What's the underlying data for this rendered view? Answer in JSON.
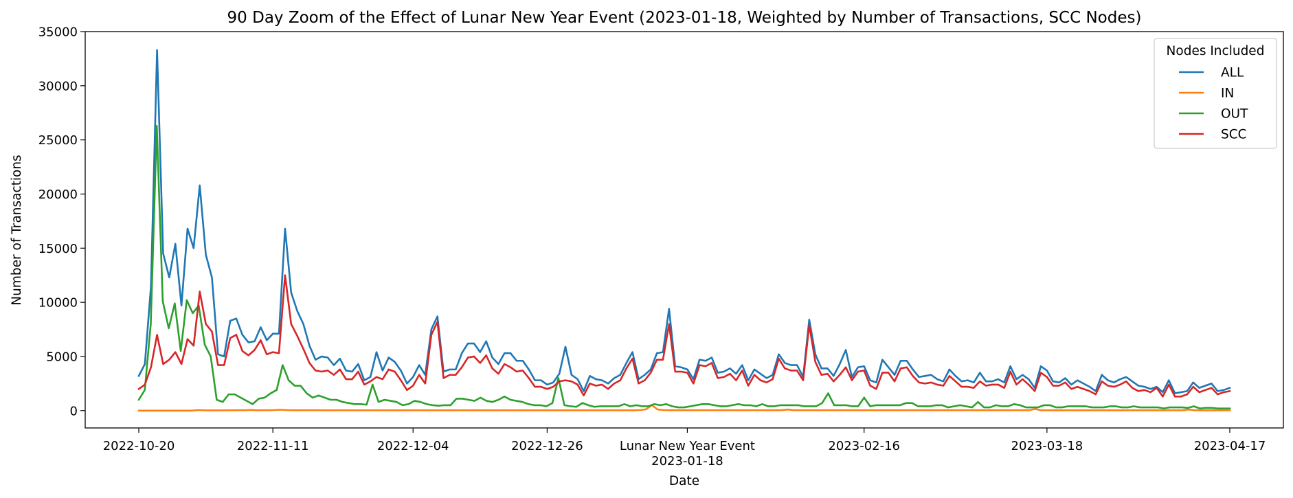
{
  "chart_data": {
    "type": "line",
    "title": "90 Day Zoom of the Effect of Lunar New Year Event (2023-01-18, Weighted by Number of Transactions, SCC Nodes)",
    "xlabel": "Date",
    "ylabel": "Number of Transactions",
    "x_start": "2022-10-20",
    "x_end": "2023-04-17",
    "ylim": [
      -1600,
      35000
    ],
    "yticks": [
      0,
      5000,
      10000,
      15000,
      20000,
      25000,
      30000,
      35000
    ],
    "xticks": [
      {
        "date": "2022-10-20",
        "label": "2022-10-20"
      },
      {
        "date": "2022-11-11",
        "label": "2022-11-11"
      },
      {
        "date": "2022-12-04",
        "label": "2022-12-04"
      },
      {
        "date": "2022-12-26",
        "label": "2022-12-26"
      },
      {
        "date": "2023-01-18",
        "label": "Lunar New Year Event",
        "label2": "2023-01-18"
      },
      {
        "date": "2023-02-16",
        "label": "2023-02-16"
      },
      {
        "date": "2023-03-18",
        "label": "2023-03-18"
      },
      {
        "date": "2023-04-17",
        "label": "2023-04-17"
      }
    ],
    "grid": false,
    "legend": {
      "title": "Nodes Included",
      "placement": "top-right"
    },
    "series": [
      {
        "name": "ALL",
        "color": "#1f77b4",
        "values": [
          3200,
          4300,
          11500,
          33300,
          14500,
          12300,
          15400,
          9700,
          16800,
          15000,
          20800,
          14400,
          12300,
          5200,
          5000,
          8300,
          8500,
          7000,
          6300,
          6400,
          7700,
          6500,
          7100,
          7100,
          16800,
          10900,
          9200,
          8000,
          6000,
          4700,
          5000,
          4900,
          4200,
          4800,
          3700,
          3600,
          4300,
          2800,
          3100,
          5400,
          3700,
          4900,
          4500,
          3700,
          2500,
          3100,
          4200,
          3300,
          7500,
          8700,
          3600,
          3800,
          3800,
          5300,
          6200,
          6200,
          5400,
          6400,
          4900,
          4300,
          5300,
          5300,
          4600,
          4600,
          3800,
          2800,
          2800,
          2400,
          2600,
          3400,
          5900,
          3300,
          2900,
          1800,
          3200,
          2900,
          2800,
          2500,
          3000,
          3300,
          4400,
          5400,
          2900,
          3300,
          3800,
          5300,
          5400,
          9400,
          4100,
          4000,
          3800,
          2900,
          4700,
          4600,
          4900,
          3500,
          3600,
          3900,
          3400,
          4200,
          2800,
          3800,
          3400,
          3000,
          3300,
          5200,
          4400,
          4200,
          4200,
          3100,
          8400,
          5200,
          3900,
          3900,
          3200,
          4300,
          5600,
          3100,
          4000,
          4100,
          2800,
          2600,
          4700,
          4000,
          3300,
          4600,
          4600,
          3800,
          3100,
          3200,
          3300,
          2900,
          2700,
          3800,
          3200,
          2700,
          2800,
          2600,
          3500,
          2700,
          2700,
          2900,
          2600,
          4100,
          2900,
          3300,
          2900,
          2100,
          4100,
          3700,
          2700,
          2600,
          3000,
          2400,
          2800,
          2500,
          2200,
          1800,
          3300,
          2800,
          2600,
          2900,
          3100,
          2700,
          2300,
          2200,
          2000,
          2200,
          1700,
          2800,
          1600,
          1700,
          1800,
          2600,
          2100,
          2300,
          2500,
          1800,
          1900,
          2100
        ]
      },
      {
        "name": "IN",
        "color": "#ff7f0e",
        "values": [
          0,
          0,
          0,
          0,
          0,
          0,
          0,
          0,
          0,
          0,
          50,
          30,
          20,
          20,
          20,
          30,
          30,
          40,
          40,
          60,
          30,
          40,
          40,
          50,
          80,
          50,
          40,
          30,
          40,
          40,
          40,
          30,
          30,
          30,
          30,
          30,
          30,
          30,
          30,
          30,
          30,
          30,
          30,
          30,
          30,
          30,
          30,
          30,
          30,
          30,
          30,
          30,
          30,
          40,
          30,
          30,
          30,
          40,
          30,
          30,
          30,
          30,
          30,
          30,
          30,
          30,
          30,
          30,
          30,
          30,
          30,
          30,
          30,
          30,
          30,
          30,
          30,
          30,
          30,
          30,
          30,
          30,
          30,
          30,
          30,
          50,
          120,
          500,
          100,
          50,
          40,
          40,
          40,
          40,
          40,
          40,
          40,
          40,
          40,
          40,
          40,
          40,
          40,
          40,
          40,
          40,
          40,
          40,
          40,
          40,
          100,
          40,
          40,
          40,
          40,
          40,
          40,
          40,
          40,
          40,
          40,
          40,
          40,
          40,
          40,
          40,
          40,
          40,
          40,
          40,
          40,
          40,
          40,
          40,
          40,
          40,
          40,
          40,
          40,
          40,
          40,
          40,
          40,
          40,
          40,
          40,
          40,
          40,
          40,
          40,
          40,
          40,
          150,
          30,
          30,
          30,
          30,
          30,
          30,
          30,
          30,
          30,
          30,
          30,
          30,
          30,
          30,
          30,
          30,
          30,
          30,
          30,
          30,
          30,
          30,
          30,
          30,
          30,
          100,
          30,
          30,
          30,
          30,
          30,
          30,
          30
        ]
      },
      {
        "name": "OUT",
        "color": "#2ca02c",
        "values": [
          1000,
          1900,
          8000,
          26300,
          10100,
          7600,
          9900,
          5500,
          10200,
          9000,
          9700,
          6100,
          5000,
          1000,
          800,
          1500,
          1500,
          1200,
          900,
          600,
          1100,
          1200,
          1600,
          1900,
          4200,
          2800,
          2300,
          2300,
          1600,
          1200,
          1400,
          1200,
          1000,
          1000,
          800,
          700,
          600,
          600,
          550,
          2400,
          800,
          1000,
          900,
          800,
          500,
          600,
          900,
          800,
          600,
          500,
          450,
          500,
          500,
          1100,
          1100,
          1000,
          900,
          1200,
          900,
          800,
          1000,
          1300,
          1000,
          900,
          800,
          600,
          500,
          500,
          400,
          700,
          3000,
          500,
          400,
          350,
          700,
          500,
          350,
          400,
          400,
          400,
          400,
          600,
          400,
          500,
          400,
          400,
          600,
          500,
          600,
          400,
          300,
          300,
          400,
          500,
          600,
          600,
          500,
          400,
          400,
          500,
          600,
          500,
          500,
          400,
          600,
          400,
          400,
          500,
          500,
          500,
          500,
          400,
          400,
          400,
          700,
          1600,
          500,
          500,
          500,
          400,
          400,
          1200,
          400,
          500,
          500,
          500,
          500,
          500,
          700,
          700,
          400,
          400,
          400,
          500,
          500,
          300,
          400,
          500,
          400,
          300,
          800,
          300,
          300,
          500,
          400,
          400,
          600,
          500,
          300,
          300,
          300,
          500,
          500,
          300,
          300,
          400,
          400,
          400,
          400,
          300,
          300,
          300,
          400,
          400,
          300,
          300,
          400,
          300,
          300,
          300,
          300,
          200,
          300,
          300,
          300,
          250,
          400,
          200,
          250,
          250,
          200,
          200,
          200
        ]
      },
      {
        "name": "SCC",
        "color": "#d62728",
        "values": [
          2000,
          2400,
          4000,
          7000,
          4300,
          4700,
          5400,
          4300,
          6600,
          6000,
          11000,
          8000,
          7300,
          4200,
          4200,
          6700,
          7000,
          5500,
          5100,
          5600,
          6500,
          5200,
          5400,
          5300,
          12500,
          8000,
          6900,
          5700,
          4400,
          3700,
          3600,
          3700,
          3300,
          3800,
          2900,
          2900,
          3600,
          2400,
          2700,
          3100,
          2900,
          3800,
          3600,
          2800,
          1900,
          2300,
          3300,
          2500,
          7000,
          8200,
          3000,
          3300,
          3300,
          4000,
          4900,
          5000,
          4400,
          5100,
          3900,
          3400,
          4300,
          4000,
          3600,
          3700,
          3000,
          2200,
          2200,
          2000,
          2200,
          2700,
          2800,
          2700,
          2400,
          1400,
          2500,
          2300,
          2400,
          2000,
          2500,
          2800,
          3900,
          4800,
          2500,
          2800,
          3500,
          4700,
          4700,
          8000,
          3600,
          3600,
          3500,
          2500,
          4200,
          4100,
          4400,
          3000,
          3100,
          3400,
          2800,
          3700,
          2300,
          3300,
          2800,
          2600,
          2900,
          4800,
          3900,
          3700,
          3700,
          2800,
          7900,
          4500,
          3300,
          3400,
          2700,
          3300,
          4000,
          2800,
          3600,
          3700,
          2300,
          2000,
          3500,
          3500,
          2700,
          3900,
          4000,
          3200,
          2600,
          2500,
          2600,
          2400,
          2300,
          3200,
          2700,
          2200,
          2200,
          2100,
          2700,
          2300,
          2400,
          2400,
          2100,
          3600,
          2400,
          2900,
          2400,
          1800,
          3500,
          3100,
          2300,
          2300,
          2600,
          2000,
          2200,
          2000,
          1800,
          1500,
          2700,
          2300,
          2200,
          2400,
          2700,
          2100,
          1800,
          1900,
          1700,
          2100,
          1300,
          2400,
          1300,
          1300,
          1500,
          2200,
          1700,
          1900,
          2100,
          1500,
          1700,
          1800
        ]
      }
    ]
  }
}
